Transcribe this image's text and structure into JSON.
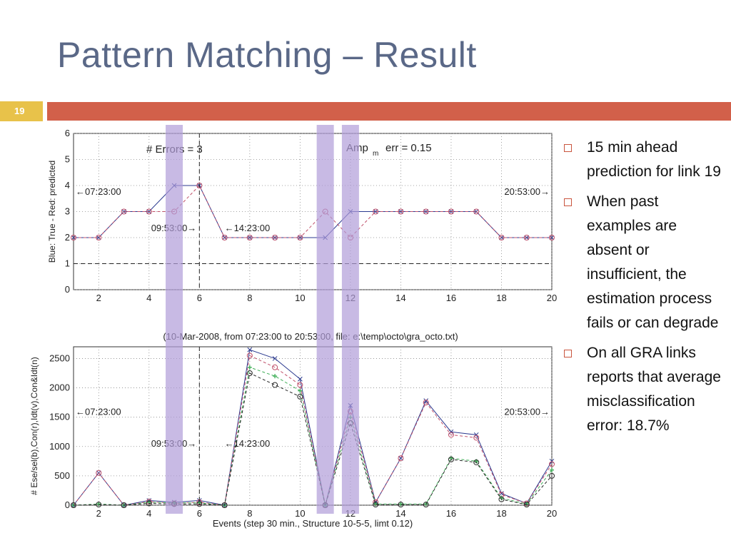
{
  "slide": {
    "title": "Pattern Matching – Result",
    "number": "19"
  },
  "bullets": [
    "15 min ahead prediction for link 19",
    "When past examples are absent or insufficient, the estimation process fails or can degrade",
    "On all GRA links reports that average misclassification error: 18.7%"
  ],
  "colors": {
    "title": "#5a6887",
    "accent_bar": "#d2604a",
    "number_box": "#e8c24a",
    "highlight": "#b19cd9",
    "true_series": "#2b3a8f",
    "pred_series": "#c0506a"
  },
  "highlight_events": [
    5,
    11,
    12
  ],
  "chart_data": [
    {
      "type": "line",
      "ylabel": "Blue: True - Red: predicted",
      "xlim": [
        1,
        20
      ],
      "ylim": [
        0,
        6
      ],
      "xticks": [
        2,
        4,
        6,
        8,
        10,
        12,
        14,
        16,
        18,
        20
      ],
      "yticks": [
        0,
        1,
        2,
        3,
        4,
        5,
        6
      ],
      "x": [
        1,
        2,
        3,
        4,
        5,
        6,
        7,
        8,
        9,
        10,
        11,
        12,
        13,
        14,
        15,
        16,
        17,
        18,
        19,
        20
      ],
      "series": [
        {
          "values": [
            2,
            2,
            3,
            3,
            4,
            4,
            2,
            2,
            2,
            2,
            2,
            3,
            3,
            3,
            3,
            3,
            3,
            2,
            2,
            2
          ]
        },
        {
          "values": [
            2,
            2,
            3,
            3,
            3,
            4,
            2,
            2,
            2,
            2,
            3,
            2,
            3,
            3,
            3,
            3,
            3,
            2,
            2,
            2
          ]
        }
      ],
      "annotations": [
        "# Errors = 3",
        "Amp",
        "m",
        "err = 0.15",
        "←07:23:00",
        "20:53:00→",
        "09:53:00→",
        "←14:23:00"
      ],
      "caption": "(10-Mar-2008, from 07:23:00 to 20:53:00, file: e:\\temp\\octo\\gra_octo.txt)"
    },
    {
      "type": "line",
      "ylabel": "# Ese/sel(b),Con(r),Idt(v),Con&Idt(n)",
      "xlabel": "Events (step 30 min., Structure 10-5-5, limt 0.12)",
      "xlim": [
        1,
        20
      ],
      "ylim": [
        0,
        2700
      ],
      "xticks": [
        2,
        4,
        6,
        8,
        10,
        12,
        14,
        16,
        18,
        20
      ],
      "yticks": [
        0,
        500,
        1000,
        1500,
        2000,
        2500
      ],
      "x": [
        1,
        2,
        3,
        4,
        5,
        6,
        7,
        8,
        9,
        10,
        11,
        12,
        13,
        14,
        15,
        16,
        17,
        18,
        19,
        20
      ],
      "series": [
        {
          "values": [
            0,
            550,
            0,
            80,
            50,
            80,
            0,
            2650,
            2500,
            2150,
            0,
            1700,
            50,
            800,
            1780,
            1250,
            1200,
            200,
            30,
            750
          ]
        },
        {
          "values": [
            0,
            550,
            0,
            60,
            30,
            50,
            0,
            2550,
            2350,
            2050,
            0,
            1600,
            50,
            800,
            1750,
            1200,
            1150,
            180,
            30,
            700
          ]
        },
        {
          "values": [
            0,
            20,
            0,
            50,
            40,
            40,
            0,
            2350,
            2200,
            1950,
            0,
            1500,
            20,
            20,
            20,
            800,
            750,
            120,
            20,
            600
          ]
        },
        {
          "values": [
            0,
            10,
            0,
            30,
            20,
            20,
            0,
            2250,
            2050,
            1850,
            0,
            1400,
            10,
            10,
            10,
            780,
            730,
            100,
            10,
            500
          ]
        }
      ],
      "annotations": [
        "←07:23:00",
        "20:53:00→",
        "09:53:00→",
        "←14:23:00"
      ]
    }
  ]
}
